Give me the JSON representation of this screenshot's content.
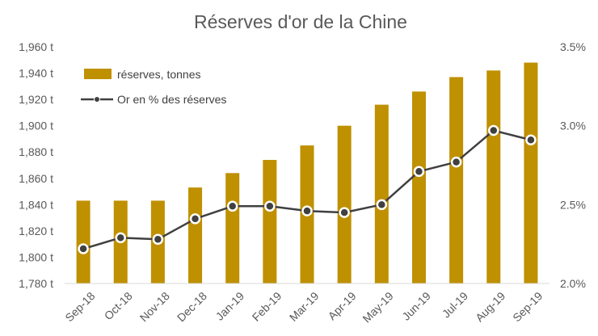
{
  "chart_data": {
    "type": "bar+line",
    "title": "Réserves d'or de la Chine",
    "categories": [
      "Sep-18",
      "Oct-18",
      "Nov-18",
      "Dec-18",
      "Jan-19",
      "Feb-19",
      "Mar-19",
      "Apr-19",
      "May-19",
      "Jun-19",
      "Jul-19",
      "Aug-19",
      "Sep-19"
    ],
    "series": [
      {
        "name": "réserves, tonnes",
        "type": "bar",
        "axis": "left",
        "color": "#BF9000",
        "values": [
          1843,
          1843,
          1843,
          1853,
          1864,
          1874,
          1885,
          1900,
          1916,
          1926,
          1937,
          1942,
          1948
        ]
      },
      {
        "name": "Or en % des réserves",
        "type": "line",
        "axis": "right",
        "color": "#404040",
        "values": [
          2.22,
          2.29,
          2.28,
          2.41,
          2.49,
          2.49,
          2.46,
          2.45,
          2.5,
          2.71,
          2.77,
          2.97,
          2.91
        ]
      }
    ],
    "y_left": {
      "min": 1780,
      "max": 1960,
      "step": 20,
      "ticks": [
        "1,780 t",
        "1,800 t",
        "1,820 t",
        "1,840 t",
        "1,860 t",
        "1,880 t",
        "1,900 t",
        "1,920 t",
        "1,940 t",
        "1,960 t"
      ]
    },
    "y_right": {
      "min": 2.0,
      "max": 3.5,
      "step": 0.5,
      "ticks": [
        "2.0%",
        "2.5%",
        "3.0%",
        "3.5%"
      ]
    },
    "grid": false,
    "legend": "top-left"
  }
}
